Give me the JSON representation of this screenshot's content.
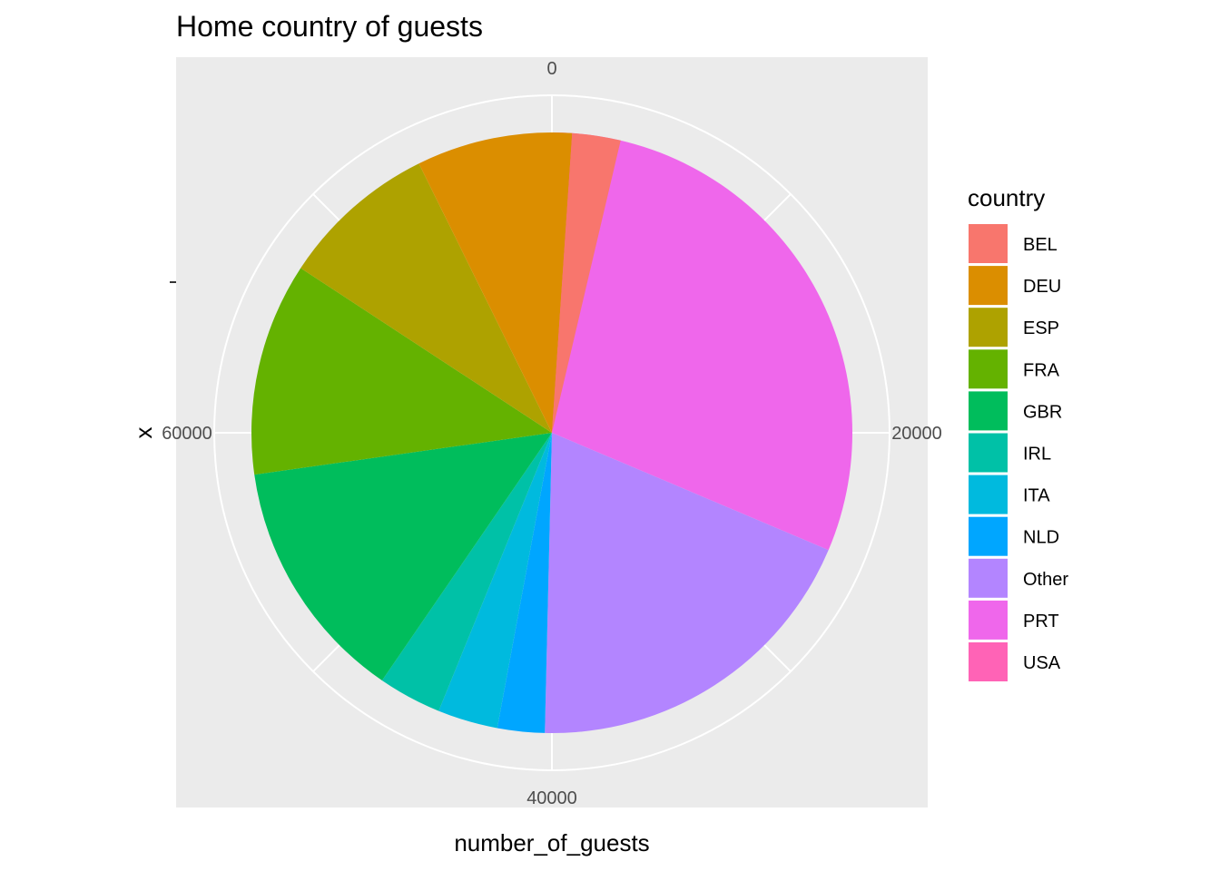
{
  "chart_data": {
    "type": "pie",
    "title": "Home country of guests",
    "xlabel": "number_of_guests",
    "ylabel": "x",
    "theta_axis": {
      "min": 0,
      "max": 80000,
      "ticks": [
        0,
        20000,
        40000,
        60000
      ]
    },
    "legend": {
      "title": "country",
      "position": "right"
    },
    "categories": [
      "USA",
      "PRT",
      "Other",
      "NLD",
      "ITA",
      "IRL",
      "GBR",
      "FRA",
      "ESP",
      "DEU",
      "BEL"
    ],
    "values": [
      1770,
      23340,
      15190,
      2030,
      2590,
      2730,
      10570,
      9170,
      6770,
      6700,
      2080
    ],
    "colors": {
      "BEL": "#F8766D",
      "DEU": "#DB8E00",
      "ESP": "#AEA200",
      "FRA": "#64B200",
      "GBR": "#00BD5C",
      "IRL": "#00C1A7",
      "ITA": "#00BADE",
      "NLD": "#00A6FF",
      "Other": "#B385FF",
      "PRT": "#EF67EB",
      "USA": "#FF63B6"
    },
    "legend_order": [
      "BEL",
      "DEU",
      "ESP",
      "FRA",
      "GBR",
      "IRL",
      "ITA",
      "NLD",
      "Other",
      "PRT",
      "USA"
    ],
    "panel_background": "#EBEBEB",
    "grid_color": "#FFFFFF"
  }
}
